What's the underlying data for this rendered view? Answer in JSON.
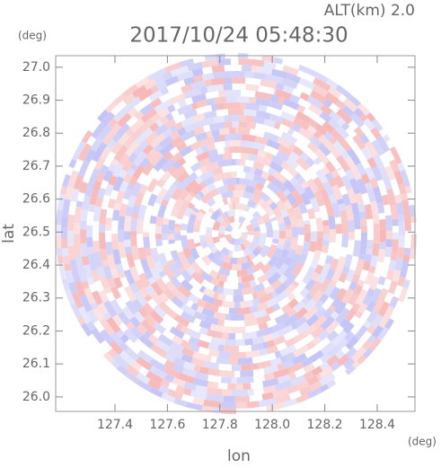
{
  "chart_data": {
    "type": "ppi",
    "title": "2017/10/24 05:48:30",
    "subtitle": "ALT(km) 2.0",
    "xlabel": "lon",
    "ylabel": "lat",
    "x_unit": "(deg)",
    "y_unit": "(deg)",
    "xlim": [
      127.174,
      128.544
    ],
    "ylim": [
      25.956,
      27.035
    ],
    "xticks": [
      127.4,
      127.6,
      127.8,
      {
        "value": 128.0,
        "label": "128.0"
      },
      128.2,
      128.4
    ],
    "yticks": [
      {
        "value": 26.0,
        "label": "26.0"
      },
      26.1,
      26.2,
      26.3,
      26.4,
      26.5,
      26.6,
      26.7,
      26.8,
      26.9,
      {
        "value": 27.0,
        "label": "27.0"
      }
    ],
    "colors": [
      "#f6b4b4",
      "#c0c0f6"
    ]
  }
}
